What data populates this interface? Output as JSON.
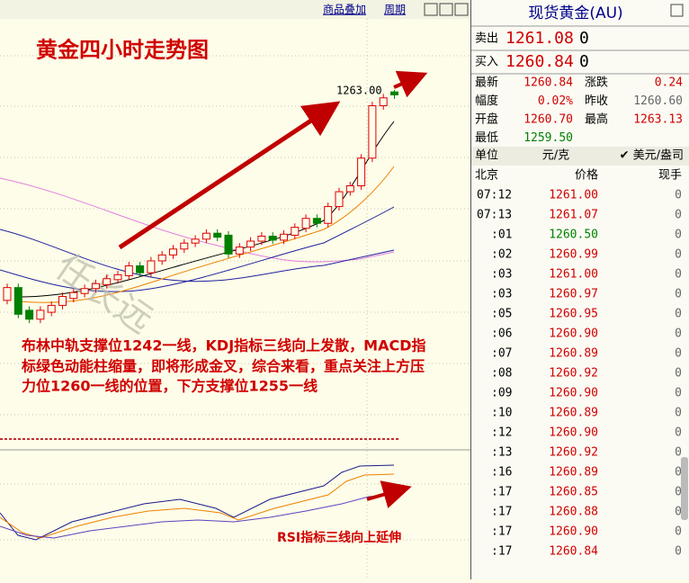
{
  "toolbar": {
    "overlay": "商品叠加",
    "period": "周期"
  },
  "chart": {
    "title": "黄金四小时走势图",
    "watermark": "任长远",
    "price_label": "1263.00",
    "annotation": [
      "布林中轨支撑位1242一线，KDJ指标三线向上发散，MACD指",
      "标绿色动能柱缩量，即将形成金叉，综合来看，重点关注上方压",
      "力位1260一线的位置，下方支撑位1255一线"
    ],
    "rsi_note": "RSI指标三线向上延伸"
  },
  "chart_data": {
    "type": "candlestick",
    "ylim": [
      1228.5,
      1272.2
    ],
    "up_color": "#e00000",
    "down_color": "#008000",
    "open": [
      1241.8,
      1243.1,
      1240.8,
      1239.9,
      1240.6,
      1241.3,
      1242.0,
      1242.5,
      1243.0,
      1243.4,
      1243.9,
      1244.3,
      1245.3,
      1244.6,
      1245.8,
      1246.4,
      1247.0,
      1247.6,
      1248.0,
      1248.6,
      1248.4,
      1246.5,
      1247.2,
      1247.8,
      1248.3,
      1247.9,
      1248.4,
      1249.1,
      1250.1,
      1249.6,
      1251.3,
      1252.8,
      1253.4,
      1256.2,
      1261.5,
      1262.9
    ],
    "high": [
      1243.5,
      1243.5,
      1241.2,
      1241.2,
      1241.7,
      1242.6,
      1243.0,
      1243.4,
      1243.9,
      1244.4,
      1244.8,
      1245.7,
      1245.7,
      1246.2,
      1246.8,
      1247.4,
      1248.0,
      1248.4,
      1249.0,
      1249.0,
      1248.8,
      1247.6,
      1248.2,
      1248.7,
      1248.7,
      1248.9,
      1249.6,
      1250.5,
      1250.5,
      1251.7,
      1253.2,
      1253.8,
      1256.6,
      1261.9,
      1262.7,
      1263.1
    ],
    "low": [
      1241.4,
      1240.0,
      1239.5,
      1239.5,
      1240.2,
      1240.9,
      1241.6,
      1242.1,
      1242.6,
      1243.0,
      1243.5,
      1243.9,
      1244.2,
      1244.2,
      1245.4,
      1246.0,
      1246.6,
      1247.2,
      1247.6,
      1247.8,
      1246.1,
      1246.1,
      1246.8,
      1247.4,
      1247.5,
      1247.5,
      1248.0,
      1248.7,
      1249.2,
      1249.2,
      1250.9,
      1252.4,
      1253.0,
      1255.8,
      1261.1,
      1262.2
    ],
    "close": [
      1243.1,
      1240.4,
      1239.9,
      1240.8,
      1241.3,
      1242.2,
      1242.6,
      1243.0,
      1243.5,
      1244.0,
      1244.4,
      1245.3,
      1244.6,
      1245.8,
      1246.4,
      1247.0,
      1247.6,
      1248.0,
      1248.6,
      1248.2,
      1246.5,
      1247.2,
      1247.8,
      1248.3,
      1247.9,
      1248.5,
      1249.2,
      1250.1,
      1249.6,
      1251.3,
      1252.8,
      1253.4,
      1256.2,
      1261.5,
      1262.3,
      1262.6
    ]
  },
  "quote": {
    "title": "现货黄金(AU)",
    "sell": {
      "label": "卖出",
      "price": "1261.08",
      "volume": "0"
    },
    "buy": {
      "label": "买入",
      "price": "1260.84",
      "volume": "0"
    },
    "info": [
      [
        {
          "label": "最新",
          "value": "1260.84",
          "color": "#d00000"
        },
        {
          "label": "涨跌",
          "value": "0.24",
          "color": "#d00000"
        }
      ],
      [
        {
          "label": "幅度",
          "value": "0.02%",
          "color": "#d00000"
        },
        {
          "label": "昨收",
          "value": "1260.60",
          "color": "#666666"
        }
      ],
      [
        {
          "label": "开盘",
          "value": "1260.70",
          "color": "#d00000"
        },
        {
          "label": "最高",
          "value": "1263.13",
          "color": "#d00000"
        }
      ],
      [
        {
          "label": "最低",
          "value": "1259.50",
          "color": "#008000"
        }
      ]
    ],
    "unit": {
      "label": "单位",
      "value": "元/克",
      "option": "✔ 美元/盎司"
    },
    "columns": [
      "北京",
      "价格",
      "现手"
    ],
    "ticks": [
      {
        "time": "07:12",
        "price": "1261.00",
        "volume": "0",
        "color": "#d00000"
      },
      {
        "time": "07:13",
        "price": "1261.07",
        "volume": "0",
        "color": "#d00000"
      },
      {
        "time": ":01",
        "price": "1260.50",
        "volume": "0",
        "color": "#008000"
      },
      {
        "time": ":02",
        "price": "1260.99",
        "volume": "0",
        "color": "#d00000"
      },
      {
        "time": ":03",
        "price": "1261.00",
        "volume": "0",
        "color": "#d00000"
      },
      {
        "time": ":03",
        "price": "1260.97",
        "volume": "0",
        "color": "#d00000"
      },
      {
        "time": ":05",
        "price": "1260.95",
        "volume": "0",
        "color": "#d00000"
      },
      {
        "time": ":06",
        "price": "1260.90",
        "volume": "0",
        "color": "#d00000"
      },
      {
        "time": ":07",
        "price": "1260.89",
        "volume": "0",
        "color": "#d00000"
      },
      {
        "time": ":08",
        "price": "1260.92",
        "volume": "0",
        "color": "#d00000"
      },
      {
        "time": ":09",
        "price": "1260.90",
        "volume": "0",
        "color": "#d00000"
      },
      {
        "time": ":10",
        "price": "1260.89",
        "volume": "0",
        "color": "#d00000"
      },
      {
        "time": ":12",
        "price": "1260.90",
        "volume": "0",
        "color": "#d00000"
      },
      {
        "time": ":13",
        "price": "1260.92",
        "volume": "0",
        "color": "#d00000"
      },
      {
        "time": ":16",
        "price": "1260.89",
        "volume": "0",
        "color": "#d00000"
      },
      {
        "time": ":17",
        "price": "1260.85",
        "volume": "0",
        "color": "#d00000"
      },
      {
        "time": ":17",
        "price": "1260.88",
        "volume": "0",
        "color": "#d00000"
      },
      {
        "time": ":17",
        "price": "1260.90",
        "volume": "0",
        "color": "#d00000"
      },
      {
        "time": ":17",
        "price": "1260.84",
        "volume": "0",
        "color": "#d00000"
      }
    ]
  }
}
